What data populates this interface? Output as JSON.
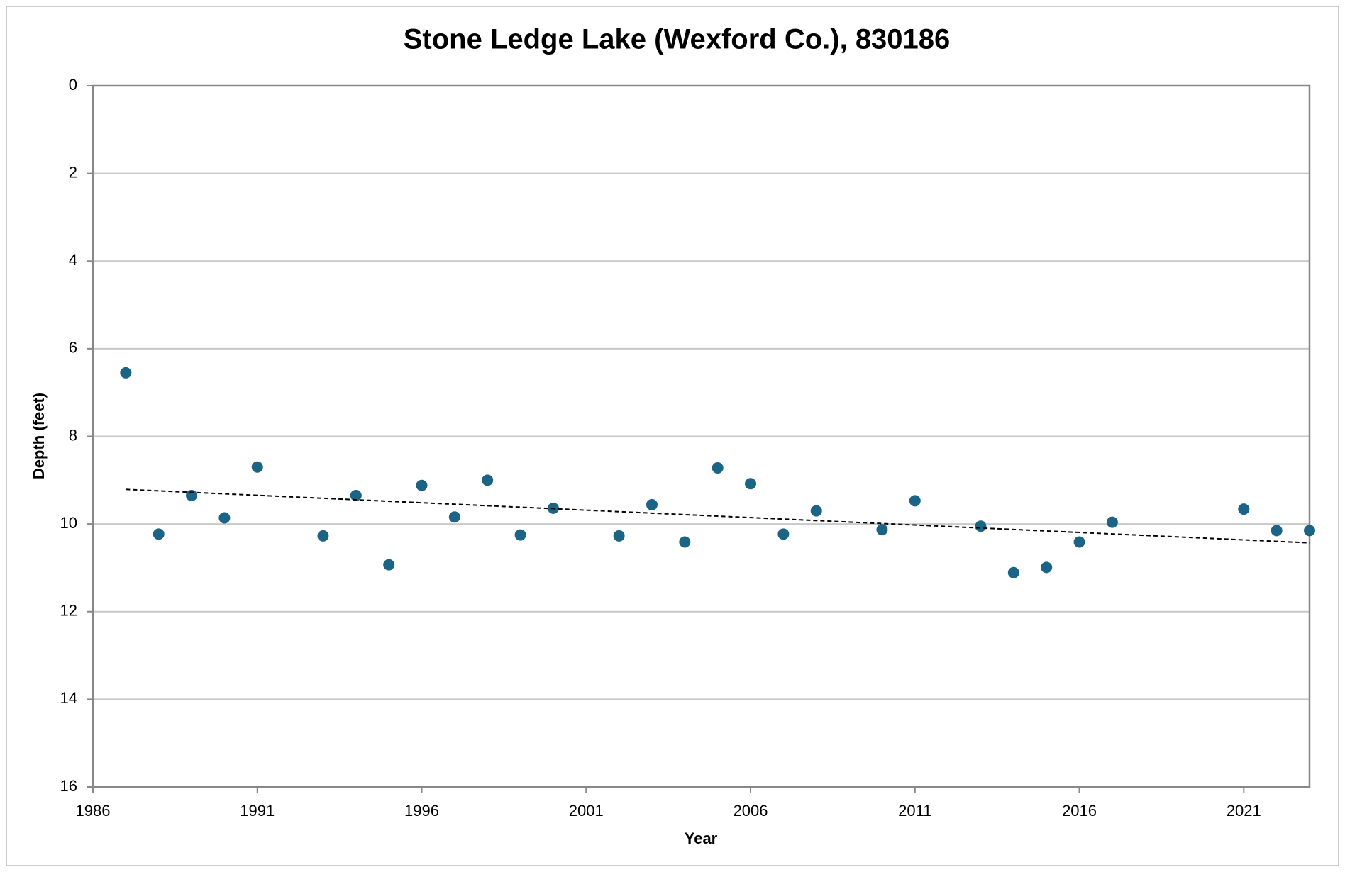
{
  "chart_data": {
    "type": "scatter",
    "title": "Stone Ledge Lake (Wexford Co.), 830186",
    "x_label": "Year",
    "y_label": "Depth (feet)",
    "x": [
      1987,
      1988,
      1989,
      1990,
      1991,
      1993,
      1994,
      1995,
      1996,
      1997,
      1998,
      1999,
      2000,
      2002,
      2003,
      2004,
      2005,
      2006,
      2007,
      2008,
      2010,
      2011,
      2013,
      2014,
      2015,
      2016,
      2017,
      2021,
      2022,
      2023
    ],
    "values": [
      6.55,
      10.23,
      9.35,
      9.86,
      8.7,
      10.27,
      9.35,
      10.93,
      9.12,
      9.84,
      9.0,
      10.25,
      9.64,
      10.27,
      9.56,
      10.41,
      8.72,
      9.08,
      10.23,
      9.7,
      10.13,
      9.47,
      10.05,
      11.11,
      10.99,
      10.41,
      9.96,
      9.66,
      10.15,
      10.15
    ],
    "color": "#1b6486",
    "trendline": {
      "x": [
        1987,
        2023
      ],
      "values": [
        9.21,
        10.43
      ],
      "color": "#000000",
      "dashed": true
    },
    "xlim": [
      1986,
      2023
    ],
    "xticks": [
      1986,
      1991,
      1996,
      2001,
      2006,
      2011,
      2016,
      2021
    ],
    "ylim": [
      0,
      16
    ],
    "yticks": [
      0,
      2,
      4,
      6,
      8,
      10,
      12,
      14,
      16
    ],
    "y_inverted": true,
    "grid": true
  }
}
